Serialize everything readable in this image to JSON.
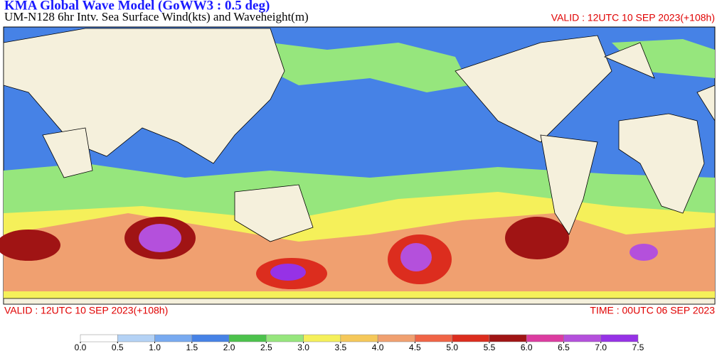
{
  "header": {
    "title": "KMA  Global Wave Model (GoWW3 : 0.5 deg)",
    "subtitle": "UM-N128  6hr Intv. Sea Surface Wind(kts) and Waveheight(m)",
    "valid_top": "VALID : 12UTC 10 SEP 2023(+108h)"
  },
  "footer": {
    "valid": "VALID : 12UTC 10 SEP 2023(+108h)",
    "time": "TIME : 00UTC 06 SEP 2023"
  },
  "legend": {
    "ticks": [
      {
        "value": 0,
        "label": "0.0"
      },
      {
        "value": 0.5,
        "label": "0.5"
      },
      {
        "value": 1,
        "label": "1.0"
      },
      {
        "value": 1.5,
        "label": "1.5"
      },
      {
        "value": 2,
        "label": "2.0"
      },
      {
        "value": 2.5,
        "label": "2.5"
      },
      {
        "value": 3,
        "label": "3.0"
      },
      {
        "value": 3.5,
        "label": "3.5"
      },
      {
        "value": 4,
        "label": "4.0"
      },
      {
        "value": 4.5,
        "label": "4.5"
      },
      {
        "value": 5,
        "label": "5.0"
      },
      {
        "value": 5.5,
        "label": "5.5"
      },
      {
        "value": 6,
        "label": "6.0"
      },
      {
        "value": 6.5,
        "label": "6.5"
      },
      {
        "value": 7,
        "label": "7.0"
      },
      {
        "value": 7.5,
        "label": "7.5"
      }
    ],
    "colors": [
      "#ffffff",
      "#b4d2f5",
      "#78aaf0",
      "#4682e6",
      "#4cc24c",
      "#96e67d",
      "#f5f05a",
      "#f5c85a",
      "#f0a070",
      "#f06446",
      "#dc2d1e",
      "#a01414",
      "#dc3ca0",
      "#b450dc",
      "#9632e6"
    ]
  }
}
